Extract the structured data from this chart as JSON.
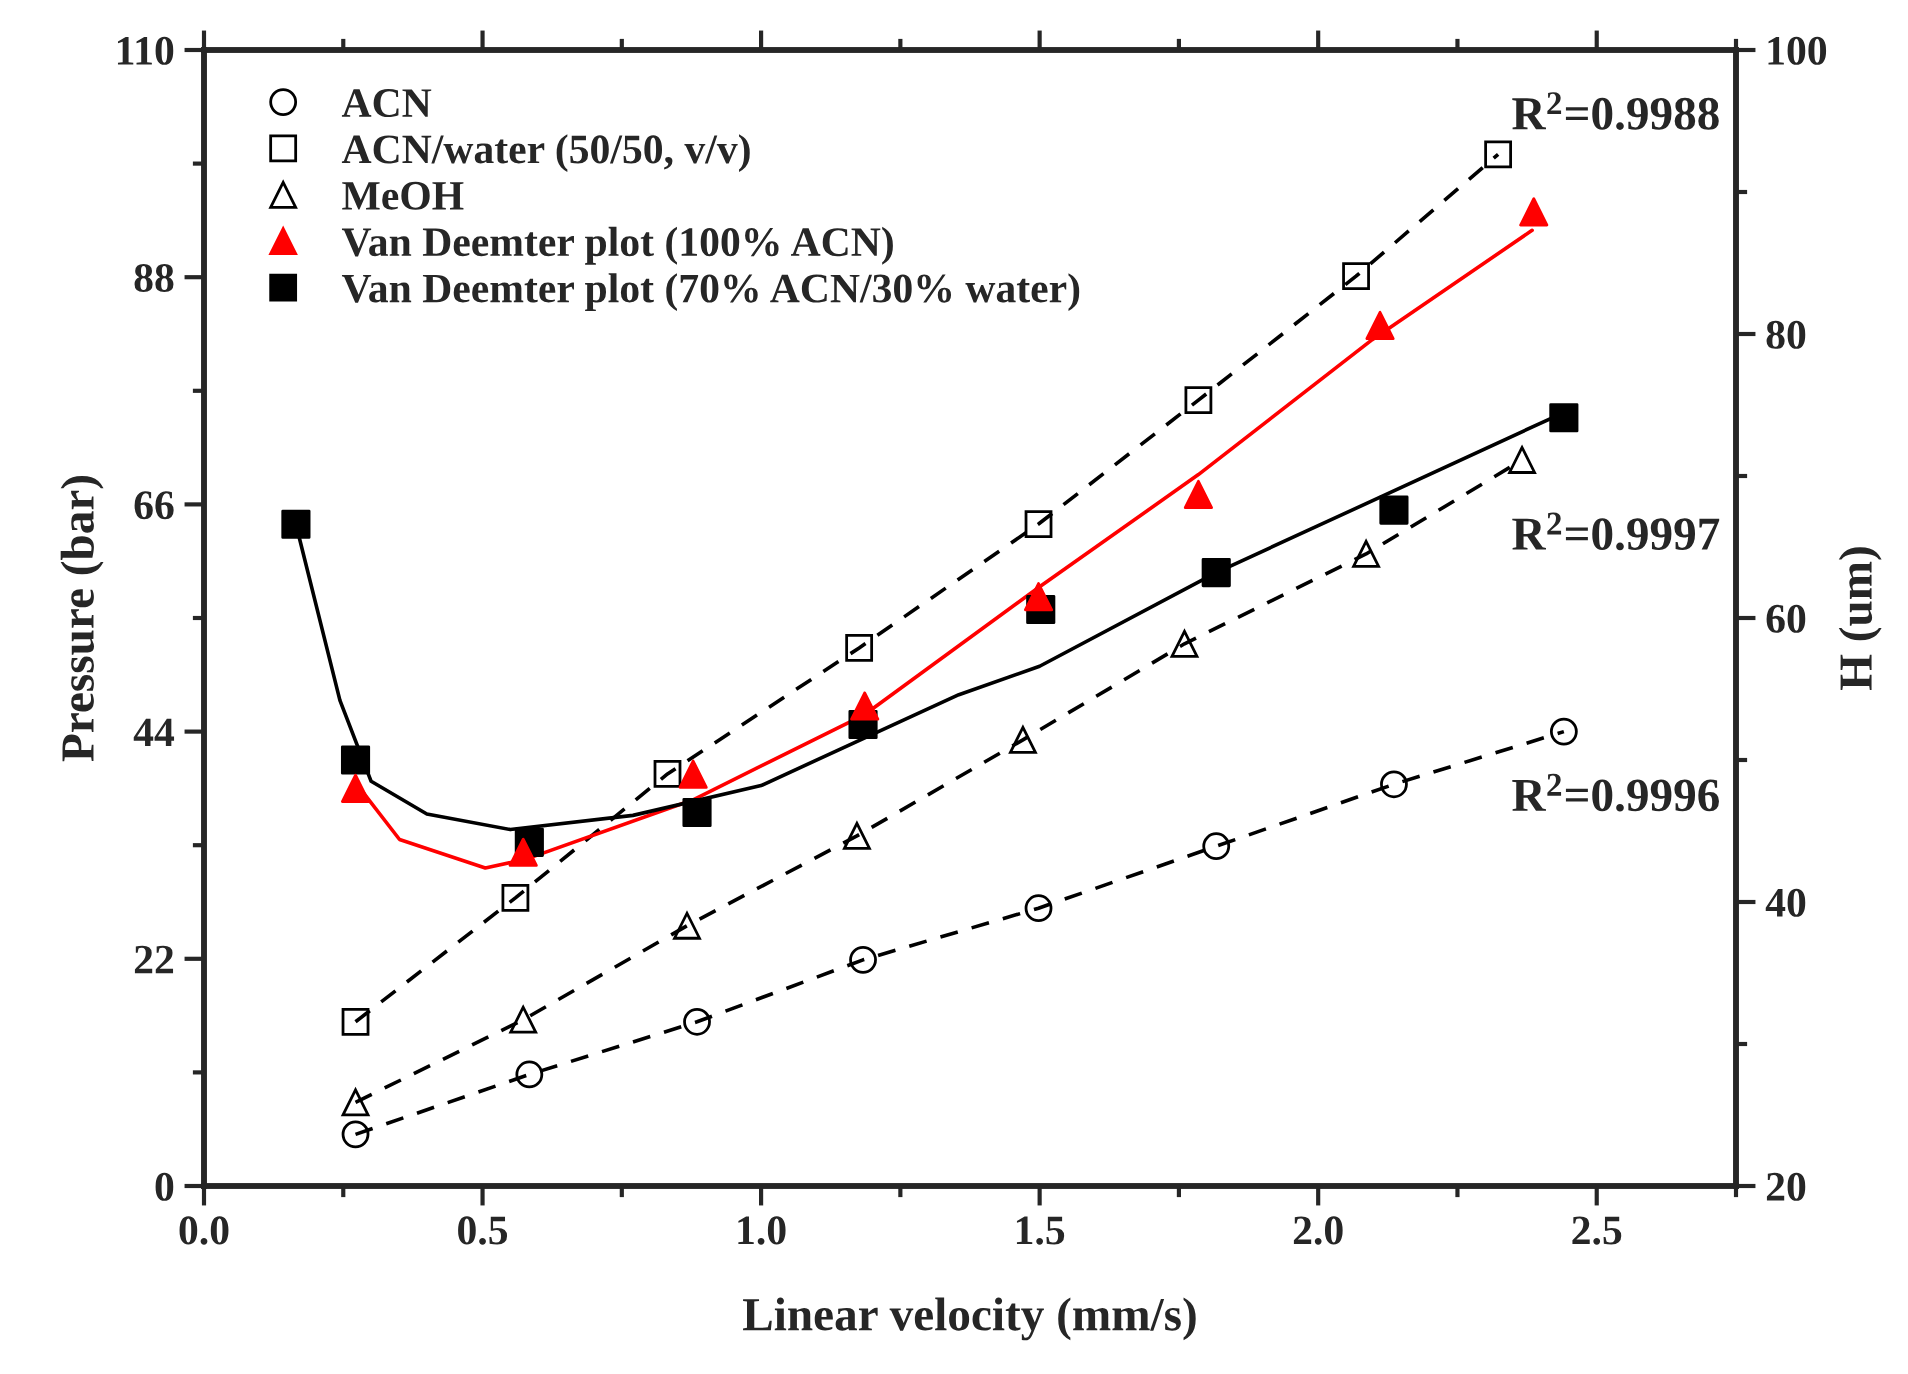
{
  "chart_data": {
    "type": "scatter",
    "xlabel": "Linear velocity (mm/s)",
    "ylabel": "Pressure (bar)",
    "y2label": "H (um)",
    "xlim": [
      0,
      2.75
    ],
    "xticks": [
      {
        "value": 0,
        "label": "0.0"
      },
      0.5,
      {
        "value": 1,
        "label": "1.0"
      },
      1.5,
      {
        "value": 2,
        "label": "2.0"
      },
      2.5
    ],
    "ylim": [
      0,
      110
    ],
    "yticks": [
      0,
      22,
      44,
      66,
      88,
      110
    ],
    "y2lim": [
      20,
      100
    ],
    "y2ticks": [
      20,
      40,
      60,
      80,
      100
    ],
    "grid": false,
    "legend": "top left",
    "series": [
      {
        "name": "ACN",
        "type": "line",
        "line_style": "dashed",
        "marker": "circle",
        "color": "#000000",
        "x": [
          0.272,
          0.584,
          0.885,
          1.183,
          1.498,
          1.817,
          2.136,
          2.441
        ],
        "values": [
          5.0,
          10.8,
          15.9,
          21.9,
          26.9,
          32.9,
          38.9,
          44.0
        ]
      },
      {
        "name": "ACN/water (50/50, v/v)",
        "type": "line",
        "line_style": "dashed",
        "marker": "square",
        "color": "#000000",
        "x": [
          0.272,
          0.559,
          0.832,
          1.176,
          1.498,
          1.785,
          2.068,
          2.323
        ],
        "values": [
          15.9,
          27.9,
          39.9,
          52.1,
          64.1,
          76.1,
          88.1,
          99.9
        ]
      },
      {
        "name": "MeOH",
        "type": "line",
        "line_style": "dashed",
        "marker": "triangle",
        "color": "#000000",
        "x": [
          0.272,
          0.573,
          0.867,
          1.172,
          1.47,
          1.76,
          2.086,
          2.366
        ],
        "values": [
          8.1,
          16.1,
          25.2,
          33.9,
          43.2,
          52.5,
          61.2,
          70.3
        ]
      },
      {
        "name": "Van Deemter plot (100% ACN)",
        "axis": "y2",
        "marker": "triangle",
        "color": "#ff0000",
        "x": [
          0.272,
          0.573,
          0.878,
          1.186,
          1.498,
          1.785,
          2.111,
          2.387
        ],
        "values": [
          48.0,
          43.5,
          49.0,
          53.8,
          61.5,
          68.7,
          80.6,
          88.6
        ]
      },
      {
        "name": "Van Deemter plot (70% ACN/30% water)",
        "axis": "y2",
        "marker": "square",
        "color": "#000000",
        "x": [
          0.165,
          0.272,
          0.584,
          0.885,
          1.183,
          1.502,
          1.817,
          2.136,
          2.441
        ],
        "values": [
          66.6,
          50.0,
          44.2,
          46.3,
          52.5,
          60.6,
          63.2,
          67.6,
          74.1
        ]
      },
      {
        "type": "line",
        "axis": "y2",
        "line_style": "solid",
        "marker": "none",
        "color": "#ff0000",
        "x": [
          0.28,
          0.351,
          0.505,
          0.577,
          0.878,
          1.186,
          1.5,
          1.785,
          2.097,
          2.384
        ],
        "values": [
          48.0,
          44.4,
          42.4,
          43.0,
          47.2,
          53.2,
          62.2,
          70.1,
          79.6,
          87.3
        ]
      },
      {
        "type": "line",
        "axis": "y2",
        "line_style": "solid",
        "marker": "none",
        "color": "#000000",
        "x": [
          0.165,
          0.244,
          0.3,
          0.4,
          0.55,
          0.77,
          1.0,
          1.355,
          1.5,
          1.817,
          2.0,
          2.437
        ],
        "values": [
          66.6,
          54.2,
          48.5,
          46.2,
          45.1,
          46.1,
          48.2,
          54.6,
          56.6,
          63.2,
          66.5,
          74.4
        ]
      }
    ],
    "annotations": [
      "R$^{2}$=0.9988",
      "R$^{2}$=0.9997",
      "R$^{2}$=0.9996"
    ]
  }
}
